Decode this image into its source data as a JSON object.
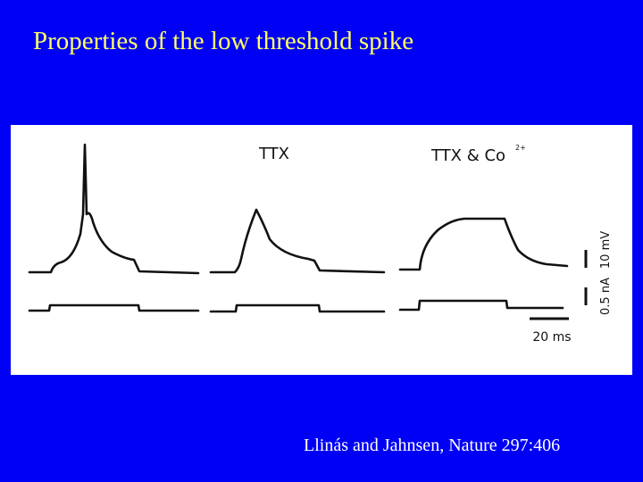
{
  "slide": {
    "title": "Properties of the low threshold spike",
    "figure": {
      "labels": [
        "TTX",
        "TTX & Co"
      ],
      "superscript": "2+",
      "scale_bars": {
        "voltage": "10 mV",
        "current": "0.5 nA",
        "time": "20 ms"
      }
    },
    "citation": "Llinás and Jahnsen, Nature 297:406"
  }
}
